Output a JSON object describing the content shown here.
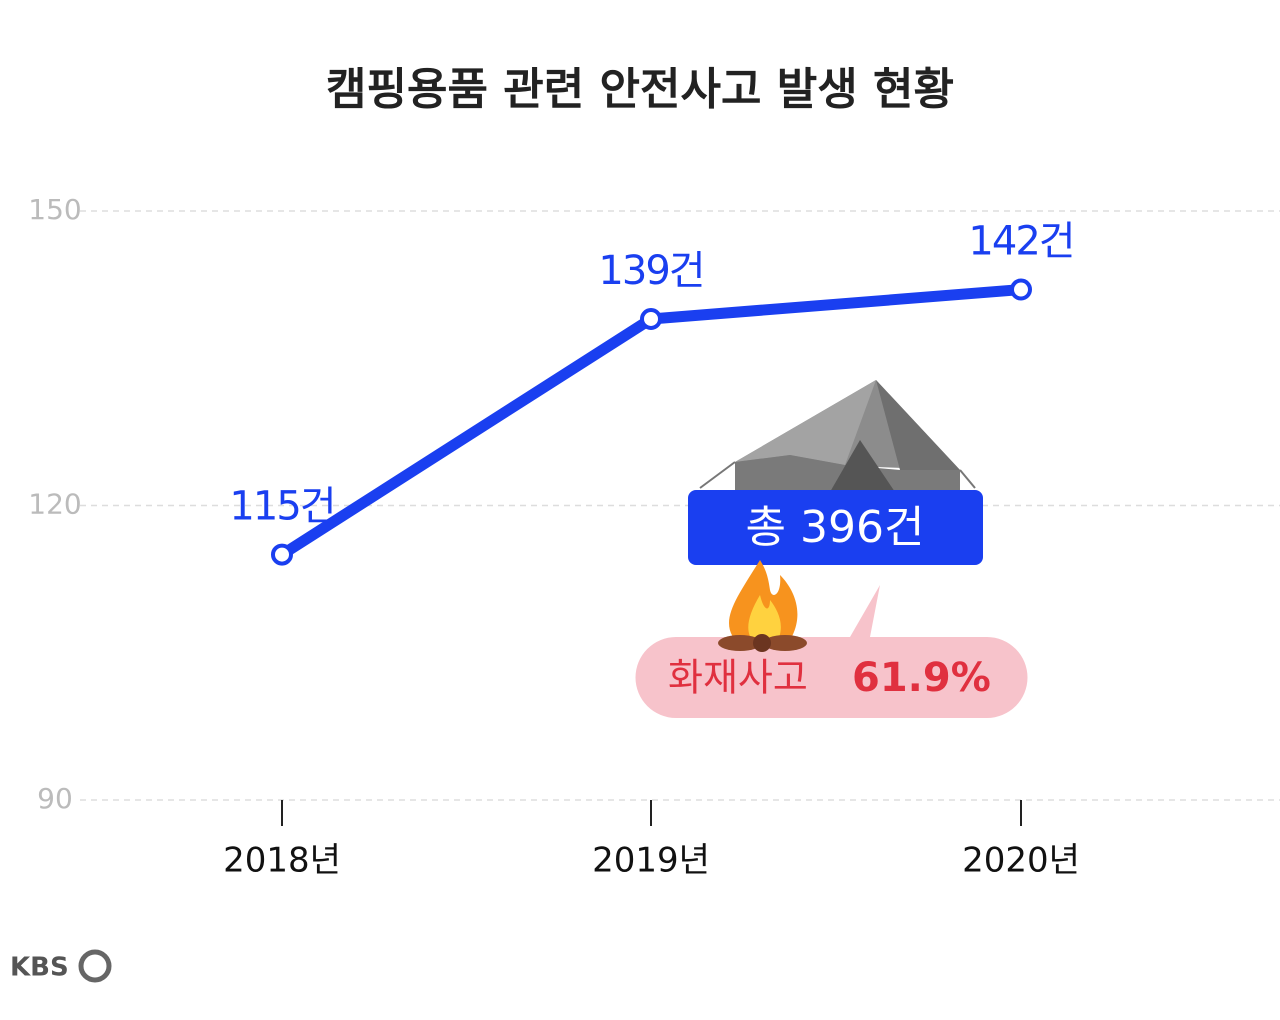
{
  "chart_data": {
    "type": "line",
    "title": "캠핑용품 관련 안전사고 발생 현황",
    "categories": [
      "2018년",
      "2019년",
      "2020년"
    ],
    "series": [
      {
        "name": null,
        "color": "#1a3ff0",
        "values": [
          115,
          139,
          142
        ],
        "value_labels": [
          "115건",
          "139건",
          "142건"
        ]
      }
    ],
    "ylim": [
      90,
      150
    ],
    "yticks": [
      90,
      120,
      150
    ],
    "grid": true,
    "annotations": {
      "total": "총 396건",
      "fire_label": "화재사고",
      "fire_share": "61.9%"
    },
    "source": "KBS"
  }
}
